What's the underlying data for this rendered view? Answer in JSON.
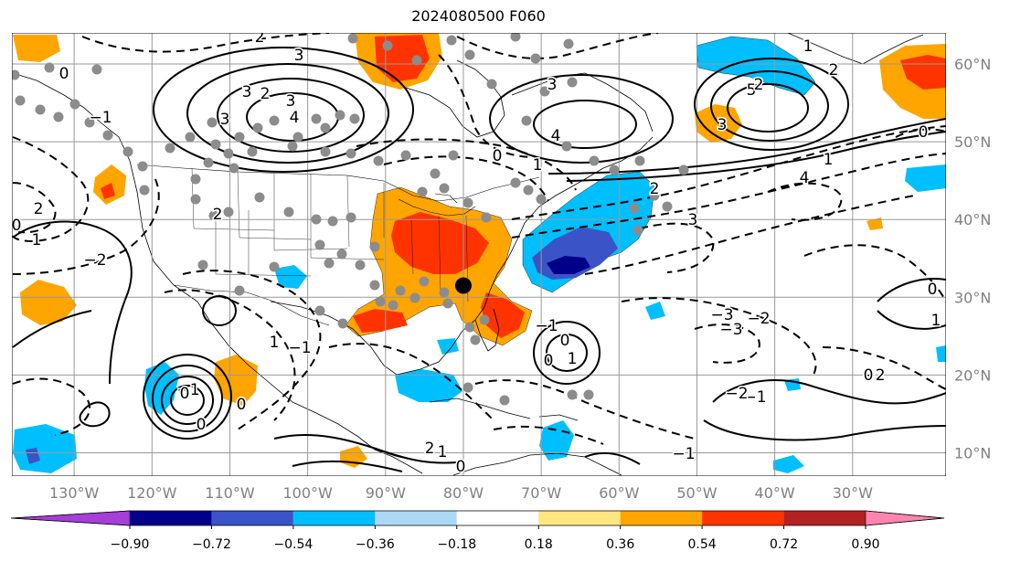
{
  "title": "2024080500 F060",
  "map": {
    "projection": "equirectangular",
    "lon_range": [
      -138,
      -18
    ],
    "lat_range": [
      7,
      64
    ],
    "grid_lons": [
      -130,
      -120,
      -110,
      -100,
      -90,
      -80,
      -70,
      -60,
      -50,
      -40,
      -30
    ],
    "grid_lats": [
      10,
      20,
      30,
      40,
      50,
      60
    ],
    "lon_labels": [
      "130°W",
      "120°W",
      "110°W",
      "100°W",
      "90°W",
      "80°W",
      "70°W",
      "60°W",
      "50°W",
      "40°W",
      "30°W"
    ],
    "lat_labels": [
      "10°N",
      "20°N",
      "30°N",
      "40°N",
      "50°N",
      "60°N"
    ],
    "marker": {
      "lon": -80,
      "lat": 31.5,
      "label": ""
    }
  },
  "colorbar": {
    "ticks": [
      "−0.90",
      "−0.72",
      "−0.54",
      "−0.36",
      "−0.18",
      "0.18",
      "0.36",
      "0.54",
      "0.72",
      "0.90"
    ],
    "colors": [
      "#a63fd9",
      "#00008b",
      "#3a54c7",
      "#00bfff",
      "#add8f5",
      "#ffffff",
      "#ffe680",
      "#ffa500",
      "#ff3300",
      "#b22222",
      "#ff85b0"
    ],
    "extend": "both"
  },
  "contour_labels": [
    "2",
    "3",
    "4",
    "3",
    "2",
    "3",
    "4",
    "5",
    "3",
    "2",
    "1",
    "2",
    "3",
    "3",
    "2",
    "0",
    "1",
    "2",
    "3",
    "4",
    "1",
    "0",
    "1",
    "2",
    "0",
    "−1",
    "0",
    "−2",
    "−1",
    "0",
    "0",
    "1",
    "−1",
    "−2",
    "−3",
    "−2",
    "−3",
    "−2",
    "0",
    "−1",
    "0",
    "1",
    "2",
    "−1",
    "0",
    "0",
    "1",
    "−1",
    "0",
    "0",
    "1"
  ]
}
